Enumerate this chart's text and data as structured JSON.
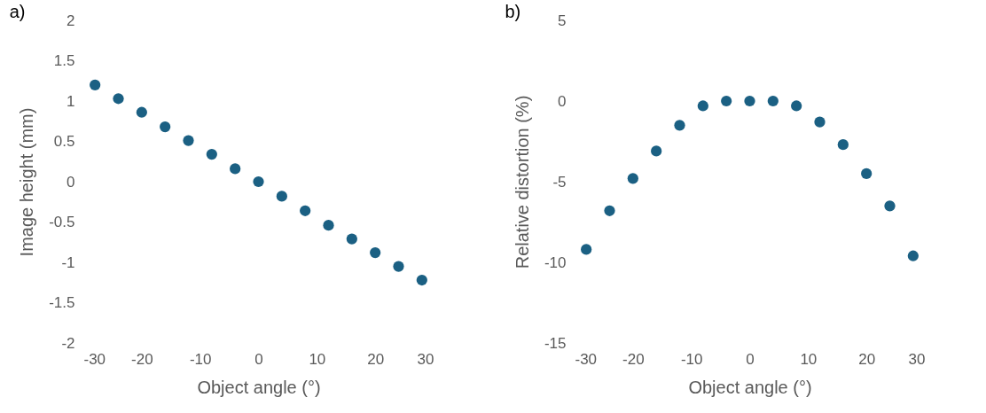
{
  "chart_data": [
    {
      "type": "scatter",
      "title": "a)",
      "xlabel": "Object angle (°)",
      "ylabel": "Image height (mm)",
      "x": [
        -28,
        -24,
        -20,
        -16,
        -12,
        -8,
        -4,
        0,
        4,
        8,
        12,
        16,
        20,
        24,
        28
      ],
      "series": [
        {
          "color": "#1b6083",
          "values": [
            1.2,
            1.03,
            0.86,
            0.68,
            0.51,
            0.34,
            0.16,
            0,
            -0.18,
            -0.36,
            -0.54,
            -0.71,
            -0.88,
            -1.05,
            -1.22
          ]
        }
      ],
      "xlim": [
        -30,
        30
      ],
      "xticks": [
        -30,
        -20,
        -10,
        0,
        10,
        20,
        30
      ],
      "ylim": [
        -2,
        2
      ],
      "yticks": [
        -2,
        -1.5,
        -1,
        -0.5,
        0,
        0.5,
        1,
        1.5,
        2
      ],
      "marker": "circle",
      "grid": false
    },
    {
      "type": "scatter",
      "title": "b)",
      "xlabel": "Object angle (°)",
      "ylabel": "Relative distortion (%)",
      "x": [
        -28,
        -24,
        -20,
        -16,
        -12,
        -8,
        -4,
        0,
        4,
        8,
        12,
        16,
        20,
        24,
        28
      ],
      "series": [
        {
          "color": "#1b6083",
          "values": [
            -9.2,
            -6.8,
            -4.8,
            -3.1,
            -1.5,
            -0.3,
            0,
            0,
            0,
            -0.3,
            -1.3,
            -2.7,
            -4.5,
            -6.5,
            -9.6
          ]
        }
      ],
      "xlim": [
        -30,
        30
      ],
      "xticks": [
        -30,
        -20,
        -10,
        0,
        10,
        20,
        30
      ],
      "ylim": [
        -15,
        5
      ],
      "yticks": [
        -15,
        -10,
        -5,
        0,
        5
      ],
      "marker": "circle",
      "grid": false
    }
  ]
}
